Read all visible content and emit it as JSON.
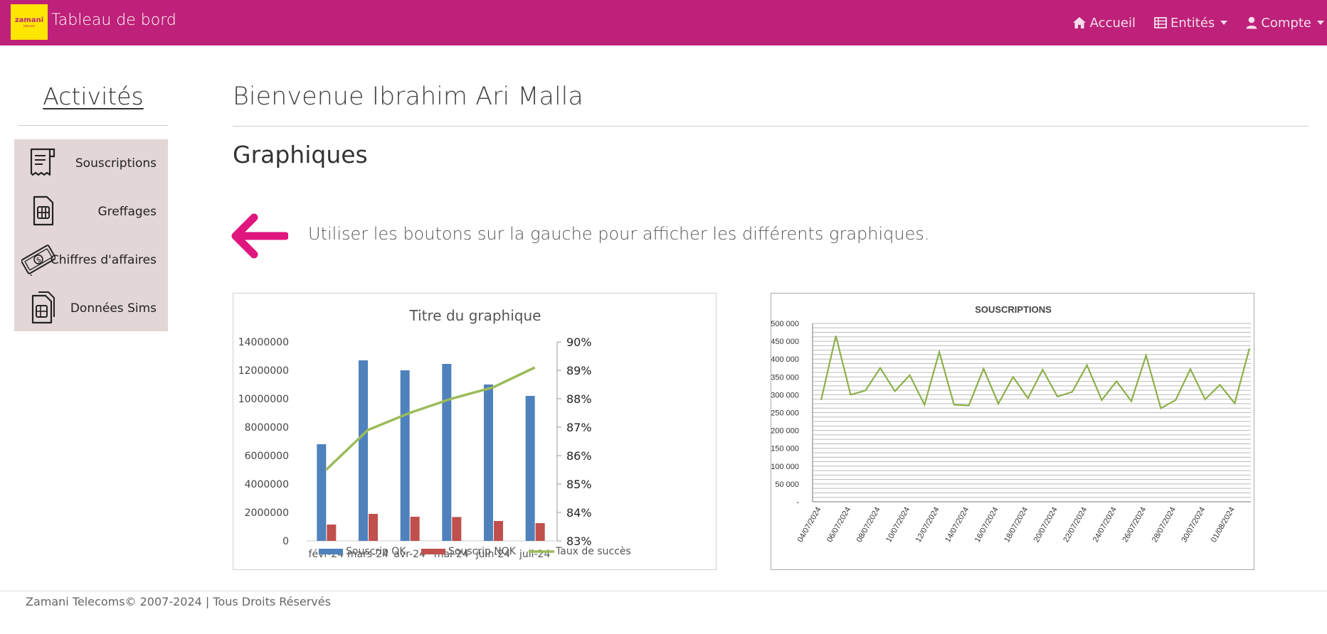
{
  "navbar": {
    "logo_text": "zamani",
    "logo_sub": "telecom",
    "title": "Tableau de bord",
    "items": [
      {
        "label": "Accueil",
        "icon": "home-icon",
        "dropdown": false
      },
      {
        "label": "Entités",
        "icon": "table-icon",
        "dropdown": true
      },
      {
        "label": "Compte",
        "icon": "user-icon",
        "dropdown": true
      }
    ],
    "color": "#bd2179"
  },
  "sidebar": {
    "title": "Activités",
    "items": [
      {
        "label": "Souscriptions",
        "icon": "receipt-icon"
      },
      {
        "label": "Greffages",
        "icon": "sim-card-icon"
      },
      {
        "label": "Chiffres d'affaires",
        "icon": "money-icon"
      },
      {
        "label": "Données Sims",
        "icon": "sim-stack-icon"
      }
    ],
    "background": "#e3d6d6"
  },
  "main": {
    "welcome": "Bienvenue Ibrahim Ari Malla",
    "section_title": "Graphiques",
    "hint": "Utiliser les boutons sur la gauche pour afficher les différents graphiques.",
    "arrow_color": "#e0167f"
  },
  "chart_data": [
    {
      "type": "bar",
      "title": "Titre du graphique",
      "categories": [
        "févr-24",
        "mars-24",
        "avr-24",
        "mai-24",
        "juin-24",
        "juil-24"
      ],
      "series": [
        {
          "name": "Souscrip OK",
          "type": "bar",
          "color": "#4f81bd",
          "values": [
            6800000,
            12700000,
            12000000,
            12450000,
            11000000,
            10200000
          ]
        },
        {
          "name": "Souscrip NOK",
          "type": "bar",
          "color": "#c0504d",
          "values": [
            1150000,
            1900000,
            1700000,
            1680000,
            1400000,
            1250000
          ]
        },
        {
          "name": "Taux de succès",
          "type": "line",
          "axis": "right",
          "color": "#9bbb59",
          "values": [
            85.5,
            86.9,
            87.5,
            88.0,
            88.4,
            89.1
          ]
        }
      ],
      "y_left": {
        "min": 0,
        "max": 14000000,
        "step": 2000000,
        "ticks": [
          "0",
          "2000000",
          "4000000",
          "6000000",
          "8000000",
          "10000000",
          "12000000",
          "14000000"
        ]
      },
      "y_right": {
        "min": 83,
        "max": 90,
        "step": 1,
        "ticks": [
          "83%",
          "84%",
          "85%",
          "86%",
          "87%",
          "88%",
          "89%",
          "90%"
        ]
      },
      "legend": "bottom"
    },
    {
      "type": "line",
      "title": "SOUSCRIPTIONS",
      "x_labels": [
        "04/07/2024",
        "06/07/2024",
        "08/07/2024",
        "10/07/2024",
        "12/07/2024",
        "14/07/2024",
        "16/07/2024",
        "18/07/2024",
        "20/07/2024",
        "22/07/2024",
        "24/07/2024",
        "26/07/2024",
        "28/07/2024",
        "30/07/2024",
        "01/08/2024"
      ],
      "series": [
        {
          "color": "#8db04a",
          "values": [
            285000,
            465000,
            300000,
            312000,
            375000,
            310000,
            355000,
            272000,
            420000,
            272000,
            270000,
            373000,
            275000,
            350000,
            290000,
            370000,
            295000,
            308000,
            383000,
            285000,
            338000,
            282000,
            410000,
            262000,
            285000,
            372000,
            287000,
            328000,
            276000,
            430000
          ]
        }
      ],
      "y": {
        "min": 0,
        "max": 500000,
        "step": 50000,
        "ticks": [
          "-",
          "50 000",
          "100 000",
          "150 000",
          "200 000",
          "250 000",
          "300 000",
          "350 000",
          "400 000",
          "450 000",
          "500 000"
        ]
      },
      "grid": true
    }
  ],
  "footer": {
    "text": "Zamani Telecoms© 2007-2024 | Tous Droits Réservés"
  }
}
